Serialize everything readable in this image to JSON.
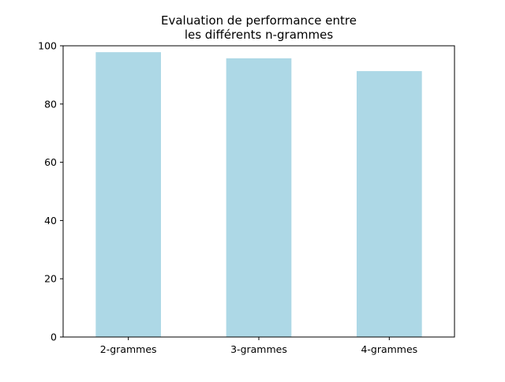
{
  "chart_data": {
    "type": "bar",
    "title_lines": [
      "Evaluation de performance entre",
      "les différents n-grammes"
    ],
    "categories": [
      "2-grammes",
      "3-grammes",
      "4-grammes"
    ],
    "values": [
      97.8,
      95.7,
      91.3
    ],
    "ylim": [
      0,
      100
    ],
    "yticks": [
      0,
      20,
      40,
      60,
      80,
      100
    ],
    "xlabel": "",
    "ylabel": "",
    "grid": false,
    "bar_color": "#add8e6"
  }
}
